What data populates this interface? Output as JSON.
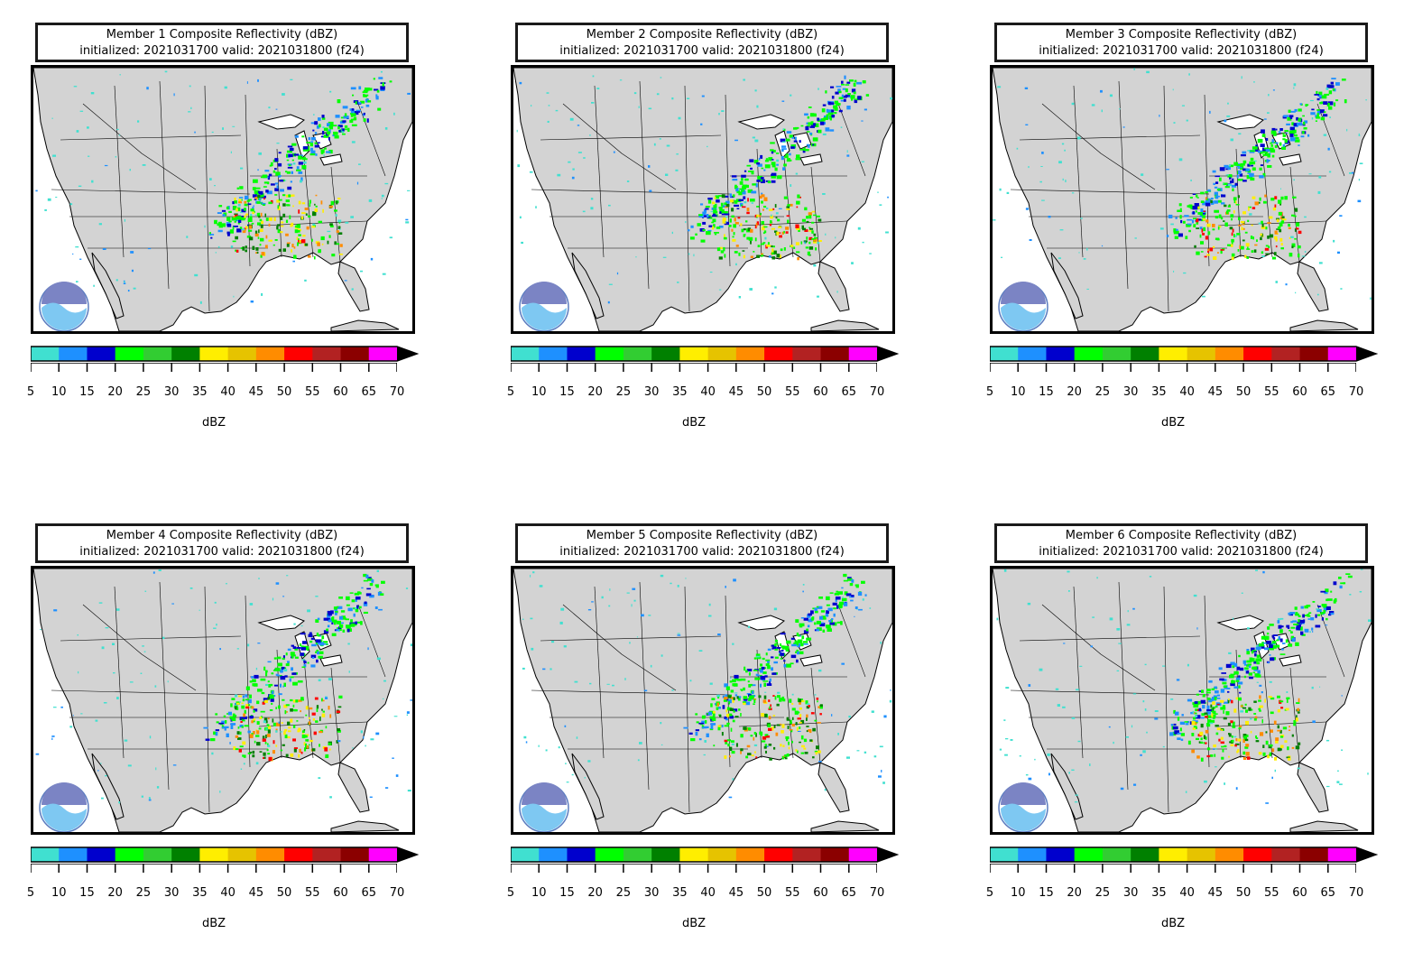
{
  "panels": [
    {
      "title_line1": "Member 1 Composite Reflectivity (dBZ)",
      "title_line2": "initialized: 2021031700 valid: 2021031800 (f24)"
    },
    {
      "title_line1": "Member 2 Composite Reflectivity (dBZ)",
      "title_line2": "initialized: 2021031700 valid: 2021031800 (f24)"
    },
    {
      "title_line1": "Member 3 Composite Reflectivity (dBZ)",
      "title_line2": "initialized: 2021031700 valid: 2021031800 (f24)"
    },
    {
      "title_line1": "Member 4 Composite Reflectivity (dBZ)",
      "title_line2": "initialized: 2021031700 valid: 2021031800 (f24)"
    },
    {
      "title_line1": "Member 5 Composite Reflectivity (dBZ)",
      "title_line2": "initialized: 2021031700 valid: 2021031800 (f24)"
    },
    {
      "title_line1": "Member 6 Composite Reflectivity (dBZ)",
      "title_line2": "initialized: 2021031700 valid: 2021031800 (f24)"
    }
  ],
  "colorbar": {
    "label": "dBZ",
    "ticks": [
      "5",
      "10",
      "15",
      "20",
      "25",
      "30",
      "35",
      "40",
      "45",
      "50",
      "55",
      "60",
      "65",
      "70"
    ],
    "colors": [
      "#40e0d0",
      "#1e90ff",
      "#0000cd",
      "#00ff00",
      "#32cd32",
      "#008000",
      "#ffee00",
      "#e6c300",
      "#ff8c00",
      "#ff0000",
      "#b22222",
      "#8b0000",
      "#ff00ff"
    ]
  },
  "map": {
    "land_color": "#d3d3d3",
    "logo_name": "noaa-logo"
  }
}
